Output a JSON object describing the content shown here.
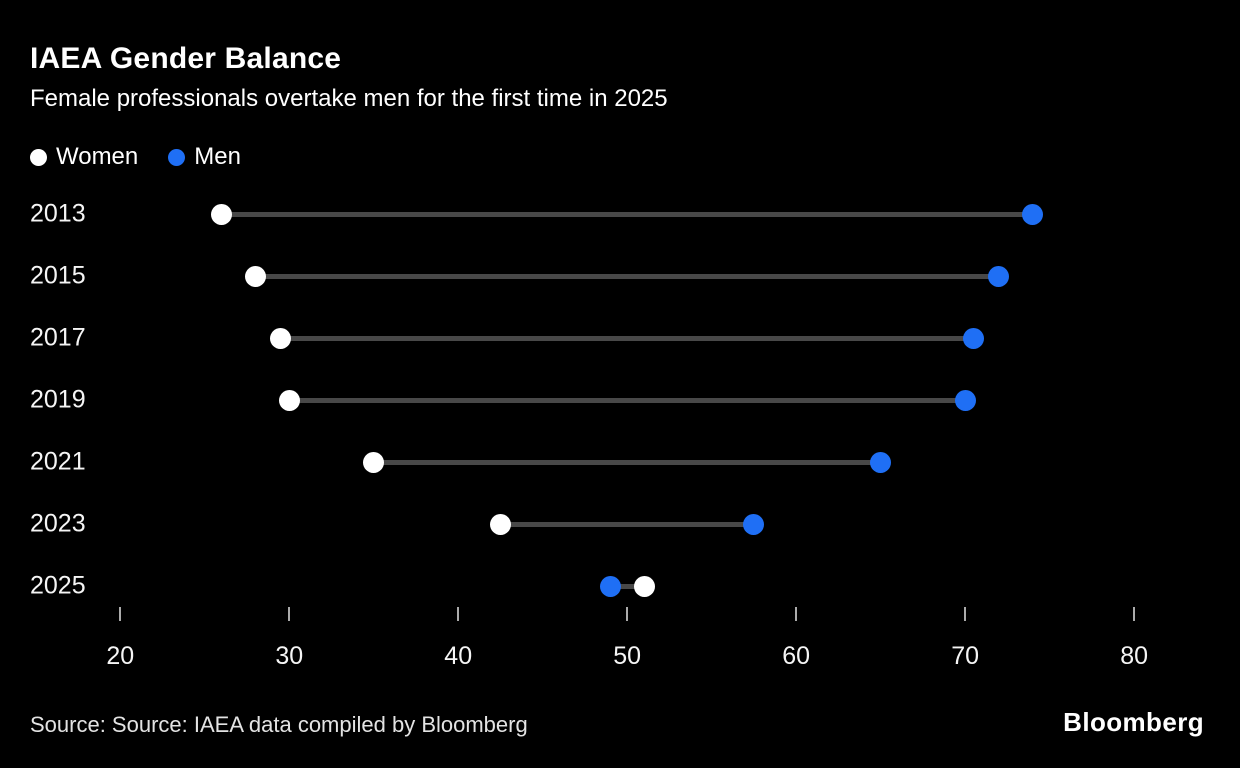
{
  "header": {
    "title": "IAEA Gender Balance",
    "subtitle": "Female professionals overtake men for the first time in 2025"
  },
  "legend": [
    {
      "label": "Women",
      "color": "#ffffff"
    },
    {
      "label": "Men",
      "color": "#1f6ff5"
    }
  ],
  "chart_data": {
    "type": "dumbbell",
    "title": "IAEA Gender Balance",
    "subtitle": "Female professionals overtake men for the first time in 2025",
    "categories": [
      "2013",
      "2015",
      "2017",
      "2019",
      "2021",
      "2023",
      "2025"
    ],
    "series": [
      {
        "name": "Women",
        "color": "#ffffff",
        "values": [
          26,
          28,
          29.5,
          30,
          35,
          42.5,
          51
        ]
      },
      {
        "name": "Men",
        "color": "#1f6ff5",
        "values": [
          74,
          72,
          70.5,
          70,
          65,
          57.5,
          49
        ]
      }
    ],
    "x_ticks": [
      20,
      30,
      40,
      50,
      60,
      70,
      80
    ],
    "x_domain": [
      18.8,
      83.9
    ],
    "xlabel": "",
    "ylabel": "",
    "grid": false,
    "legend_position": "top-left",
    "connector_color": "#484848",
    "background_color": "#000000"
  },
  "footer": {
    "source": "Source: Source: IAEA data compiled by Bloomberg",
    "logo": "Bloomberg"
  }
}
